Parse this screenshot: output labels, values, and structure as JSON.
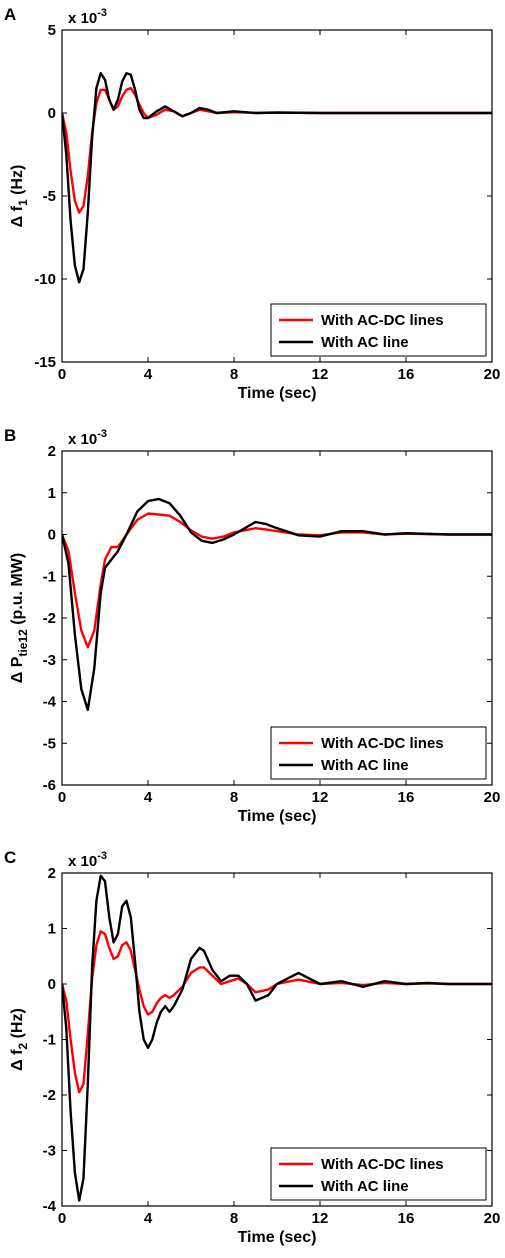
{
  "chart_data": [
    {
      "panel_label": "A",
      "type": "line",
      "multiplier": "x 10",
      "multiplier_exp": "-3",
      "ylabel_prefix": "Δ f",
      "ylabel_sub": "1",
      "ylabel_suffix": " (Hz)",
      "xlabel": "Time (sec)",
      "xlim": [
        0,
        20
      ],
      "ylim": [
        -15,
        5
      ],
      "xticks": [
        0,
        4,
        8,
        12,
        16,
        20
      ],
      "yticks": [
        5,
        0,
        -5,
        -10,
        -15
      ],
      "legend_position": "bottom-right",
      "series": [
        {
          "name": "With AC-DC lines",
          "color": "#ff0000",
          "x": [
            0,
            0.2,
            0.4,
            0.6,
            0.8,
            1.0,
            1.2,
            1.4,
            1.6,
            1.8,
            2.0,
            2.2,
            2.4,
            2.6,
            2.8,
            3.0,
            3.2,
            3.4,
            3.6,
            3.8,
            4.0,
            4.4,
            4.8,
            5.2,
            5.6,
            6.0,
            6.4,
            6.8,
            7.2,
            8,
            9,
            10,
            12,
            14,
            16,
            18,
            20
          ],
          "y": [
            0,
            -1.2,
            -3.5,
            -5.3,
            -6.0,
            -5.6,
            -3.8,
            -1.2,
            0.6,
            1.4,
            1.4,
            0.8,
            0.2,
            0.4,
            1.0,
            1.4,
            1.5,
            1.1,
            0.5,
            0,
            -0.3,
            -0.1,
            0.2,
            0.1,
            -0.2,
            0,
            0.2,
            0.1,
            0,
            0.05,
            0,
            0.02,
            0,
            0,
            0,
            0,
            0
          ]
        },
        {
          "name": "With AC line",
          "color": "#000000",
          "x": [
            0,
            0.2,
            0.4,
            0.6,
            0.8,
            1.0,
            1.2,
            1.4,
            1.6,
            1.8,
            2.0,
            2.2,
            2.4,
            2.6,
            2.8,
            3.0,
            3.2,
            3.4,
            3.6,
            3.8,
            4.0,
            4.4,
            4.8,
            5.2,
            5.6,
            6.0,
            6.4,
            6.8,
            7.2,
            8,
            9,
            10,
            12,
            14,
            16,
            18,
            20
          ],
          "y": [
            0,
            -2.5,
            -6.5,
            -9.2,
            -10.2,
            -9.4,
            -6.0,
            -1.5,
            1.5,
            2.4,
            2.0,
            0.8,
            0.2,
            0.8,
            1.9,
            2.4,
            2.3,
            1.4,
            0.2,
            -0.3,
            -0.3,
            0.1,
            0.4,
            0.1,
            -0.2,
            0,
            0.3,
            0.2,
            0,
            0.1,
            0,
            0.03,
            0,
            0,
            0,
            0,
            0
          ]
        }
      ]
    },
    {
      "panel_label": "B",
      "type": "line",
      "multiplier": "x 10",
      "multiplier_exp": "-3",
      "ylabel_prefix": "Δ P",
      "ylabel_sub": "tie12",
      "ylabel_suffix": " (p.u. MW)",
      "xlabel": "Time (sec)",
      "xlim": [
        0,
        20
      ],
      "ylim": [
        -6,
        2
      ],
      "xticks": [
        0,
        4,
        8,
        12,
        16,
        20
      ],
      "yticks": [
        2,
        1,
        0,
        -1,
        -2,
        -3,
        -4,
        -5,
        -6
      ],
      "legend_position": "bottom-right",
      "series": [
        {
          "name": "With AC-DC lines",
          "color": "#ff0000",
          "x": [
            0,
            0.3,
            0.6,
            0.9,
            1.2,
            1.5,
            1.8,
            2.0,
            2.3,
            2.6,
            3.0,
            3.5,
            4.0,
            4.5,
            5.0,
            5.5,
            6.0,
            6.5,
            7.0,
            7.5,
            8.0,
            8.5,
            9.0,
            9.5,
            10,
            11,
            12,
            13,
            14,
            15,
            16,
            18,
            20
          ],
          "y": [
            0,
            -0.4,
            -1.4,
            -2.3,
            -2.7,
            -2.3,
            -1.2,
            -0.6,
            -0.3,
            -0.3,
            0,
            0.35,
            0.5,
            0.48,
            0.45,
            0.3,
            0.1,
            -0.05,
            -0.1,
            -0.05,
            0.05,
            0.1,
            0.15,
            0.12,
            0.08,
            0,
            -0.02,
            0.05,
            0.05,
            0,
            0.02,
            0,
            0
          ]
        },
        {
          "name": "With AC line",
          "color": "#000000",
          "x": [
            0,
            0.3,
            0.6,
            0.9,
            1.2,
            1.5,
            1.8,
            2.0,
            2.3,
            2.6,
            3.0,
            3.5,
            4.0,
            4.5,
            5.0,
            5.5,
            6.0,
            6.5,
            7.0,
            7.5,
            8.0,
            8.5,
            9.0,
            9.5,
            10,
            11,
            12,
            13,
            14,
            15,
            16,
            18,
            20
          ],
          "y": [
            0,
            -0.7,
            -2.4,
            -3.7,
            -4.2,
            -3.2,
            -1.4,
            -0.8,
            -0.6,
            -0.4,
            0,
            0.55,
            0.8,
            0.85,
            0.75,
            0.45,
            0.05,
            -0.15,
            -0.2,
            -0.12,
            0,
            0.15,
            0.3,
            0.25,
            0.15,
            -0.02,
            -0.05,
            0.08,
            0.08,
            0,
            0.03,
            0,
            0
          ]
        }
      ]
    },
    {
      "panel_label": "C",
      "type": "line",
      "multiplier": "x 10",
      "multiplier_exp": "-3",
      "ylabel_prefix": "Δ f",
      "ylabel_sub": "2",
      "ylabel_suffix": " (Hz)",
      "xlabel": "Time (sec)",
      "xlim": [
        0,
        20
      ],
      "ylim": [
        -4,
        2
      ],
      "xticks": [
        0,
        4,
        8,
        12,
        16,
        20
      ],
      "yticks": [
        2,
        1,
        0,
        -1,
        -2,
        -3,
        -4
      ],
      "legend_position": "bottom-right",
      "series": [
        {
          "name": "With AC-DC lines",
          "color": "#ff0000",
          "x": [
            0,
            0.2,
            0.4,
            0.6,
            0.8,
            1.0,
            1.2,
            1.4,
            1.6,
            1.8,
            2.0,
            2.2,
            2.4,
            2.6,
            2.8,
            3.0,
            3.2,
            3.4,
            3.6,
            3.8,
            4.0,
            4.2,
            4.4,
            4.6,
            4.8,
            5.0,
            5.2,
            5.6,
            6.0,
            6.4,
            6.6,
            7.0,
            7.4,
            7.8,
            8.2,
            8.6,
            9.0,
            9.6,
            10,
            11,
            12,
            13,
            14,
            15,
            16,
            17,
            18,
            20
          ],
          "y": [
            0,
            -0.3,
            -1.0,
            -1.6,
            -1.95,
            -1.8,
            -0.9,
            0.1,
            0.7,
            0.95,
            0.9,
            0.65,
            0.45,
            0.5,
            0.7,
            0.75,
            0.6,
            0.25,
            -0.1,
            -0.4,
            -0.55,
            -0.5,
            -0.35,
            -0.25,
            -0.2,
            -0.25,
            -0.2,
            -0.05,
            0.2,
            0.3,
            0.3,
            0.15,
            0,
            0.05,
            0.1,
            0,
            -0.15,
            -0.1,
            0,
            0.08,
            0,
            0.02,
            -0.02,
            0.02,
            0,
            0.01,
            0,
            0
          ]
        },
        {
          "name": "With AC line",
          "color": "#000000",
          "x": [
            0,
            0.2,
            0.4,
            0.6,
            0.8,
            1.0,
            1.2,
            1.4,
            1.6,
            1.8,
            2.0,
            2.2,
            2.4,
            2.6,
            2.8,
            3.0,
            3.2,
            3.4,
            3.6,
            3.8,
            4.0,
            4.2,
            4.4,
            4.6,
            4.8,
            5.0,
            5.2,
            5.6,
            6.0,
            6.4,
            6.6,
            7.0,
            7.4,
            7.8,
            8.2,
            8.6,
            9.0,
            9.6,
            10,
            11,
            12,
            13,
            14,
            15,
            16,
            17,
            18,
            20
          ],
          "y": [
            0,
            -0.8,
            -2.3,
            -3.4,
            -3.9,
            -3.5,
            -1.8,
            0.3,
            1.5,
            1.95,
            1.85,
            1.2,
            0.75,
            0.9,
            1.4,
            1.5,
            1.2,
            0.4,
            -0.5,
            -1.0,
            -1.15,
            -1.0,
            -0.7,
            -0.5,
            -0.4,
            -0.5,
            -0.4,
            -0.1,
            0.45,
            0.65,
            0.6,
            0.25,
            0.05,
            0.15,
            0.15,
            0,
            -0.3,
            -0.2,
            0,
            0.2,
            0,
            0.05,
            -0.05,
            0.05,
            0,
            0.02,
            0,
            0
          ]
        }
      ]
    }
  ]
}
